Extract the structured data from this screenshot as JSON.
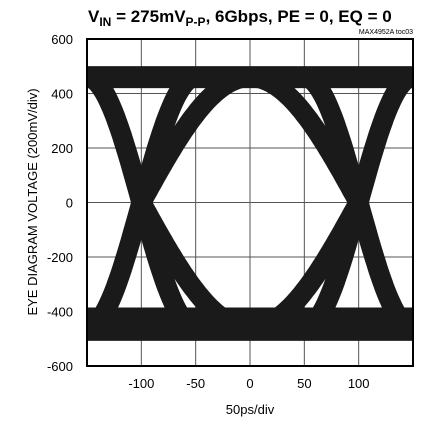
{
  "chart_data": {
    "type": "line",
    "title": {
      "v": "V",
      "sub": "IN",
      "mid": " = 275mV",
      "sub2": "P-P",
      "rest": ", 6Gbps, PE = 0, EQ = 0"
    },
    "tag": "MAX4952A toc03",
    "ylabel": "EYE DIAGRAM VOLTAGE (200mV/div)",
    "xlabel": "50ps/div",
    "xlim": [
      -150,
      150
    ],
    "ylim": [
      -600,
      600
    ],
    "xticks": [
      -100,
      -50,
      0,
      50,
      100
    ],
    "yticks": [
      600,
      400,
      200,
      0,
      -200,
      -400,
      -600
    ],
    "grid": true,
    "eye": {
      "high_level": 460,
      "low_level": -460,
      "crossings": [
        -100,
        100
      ],
      "crossing_level": 0,
      "trace_color": "#1a1a1a"
    }
  }
}
